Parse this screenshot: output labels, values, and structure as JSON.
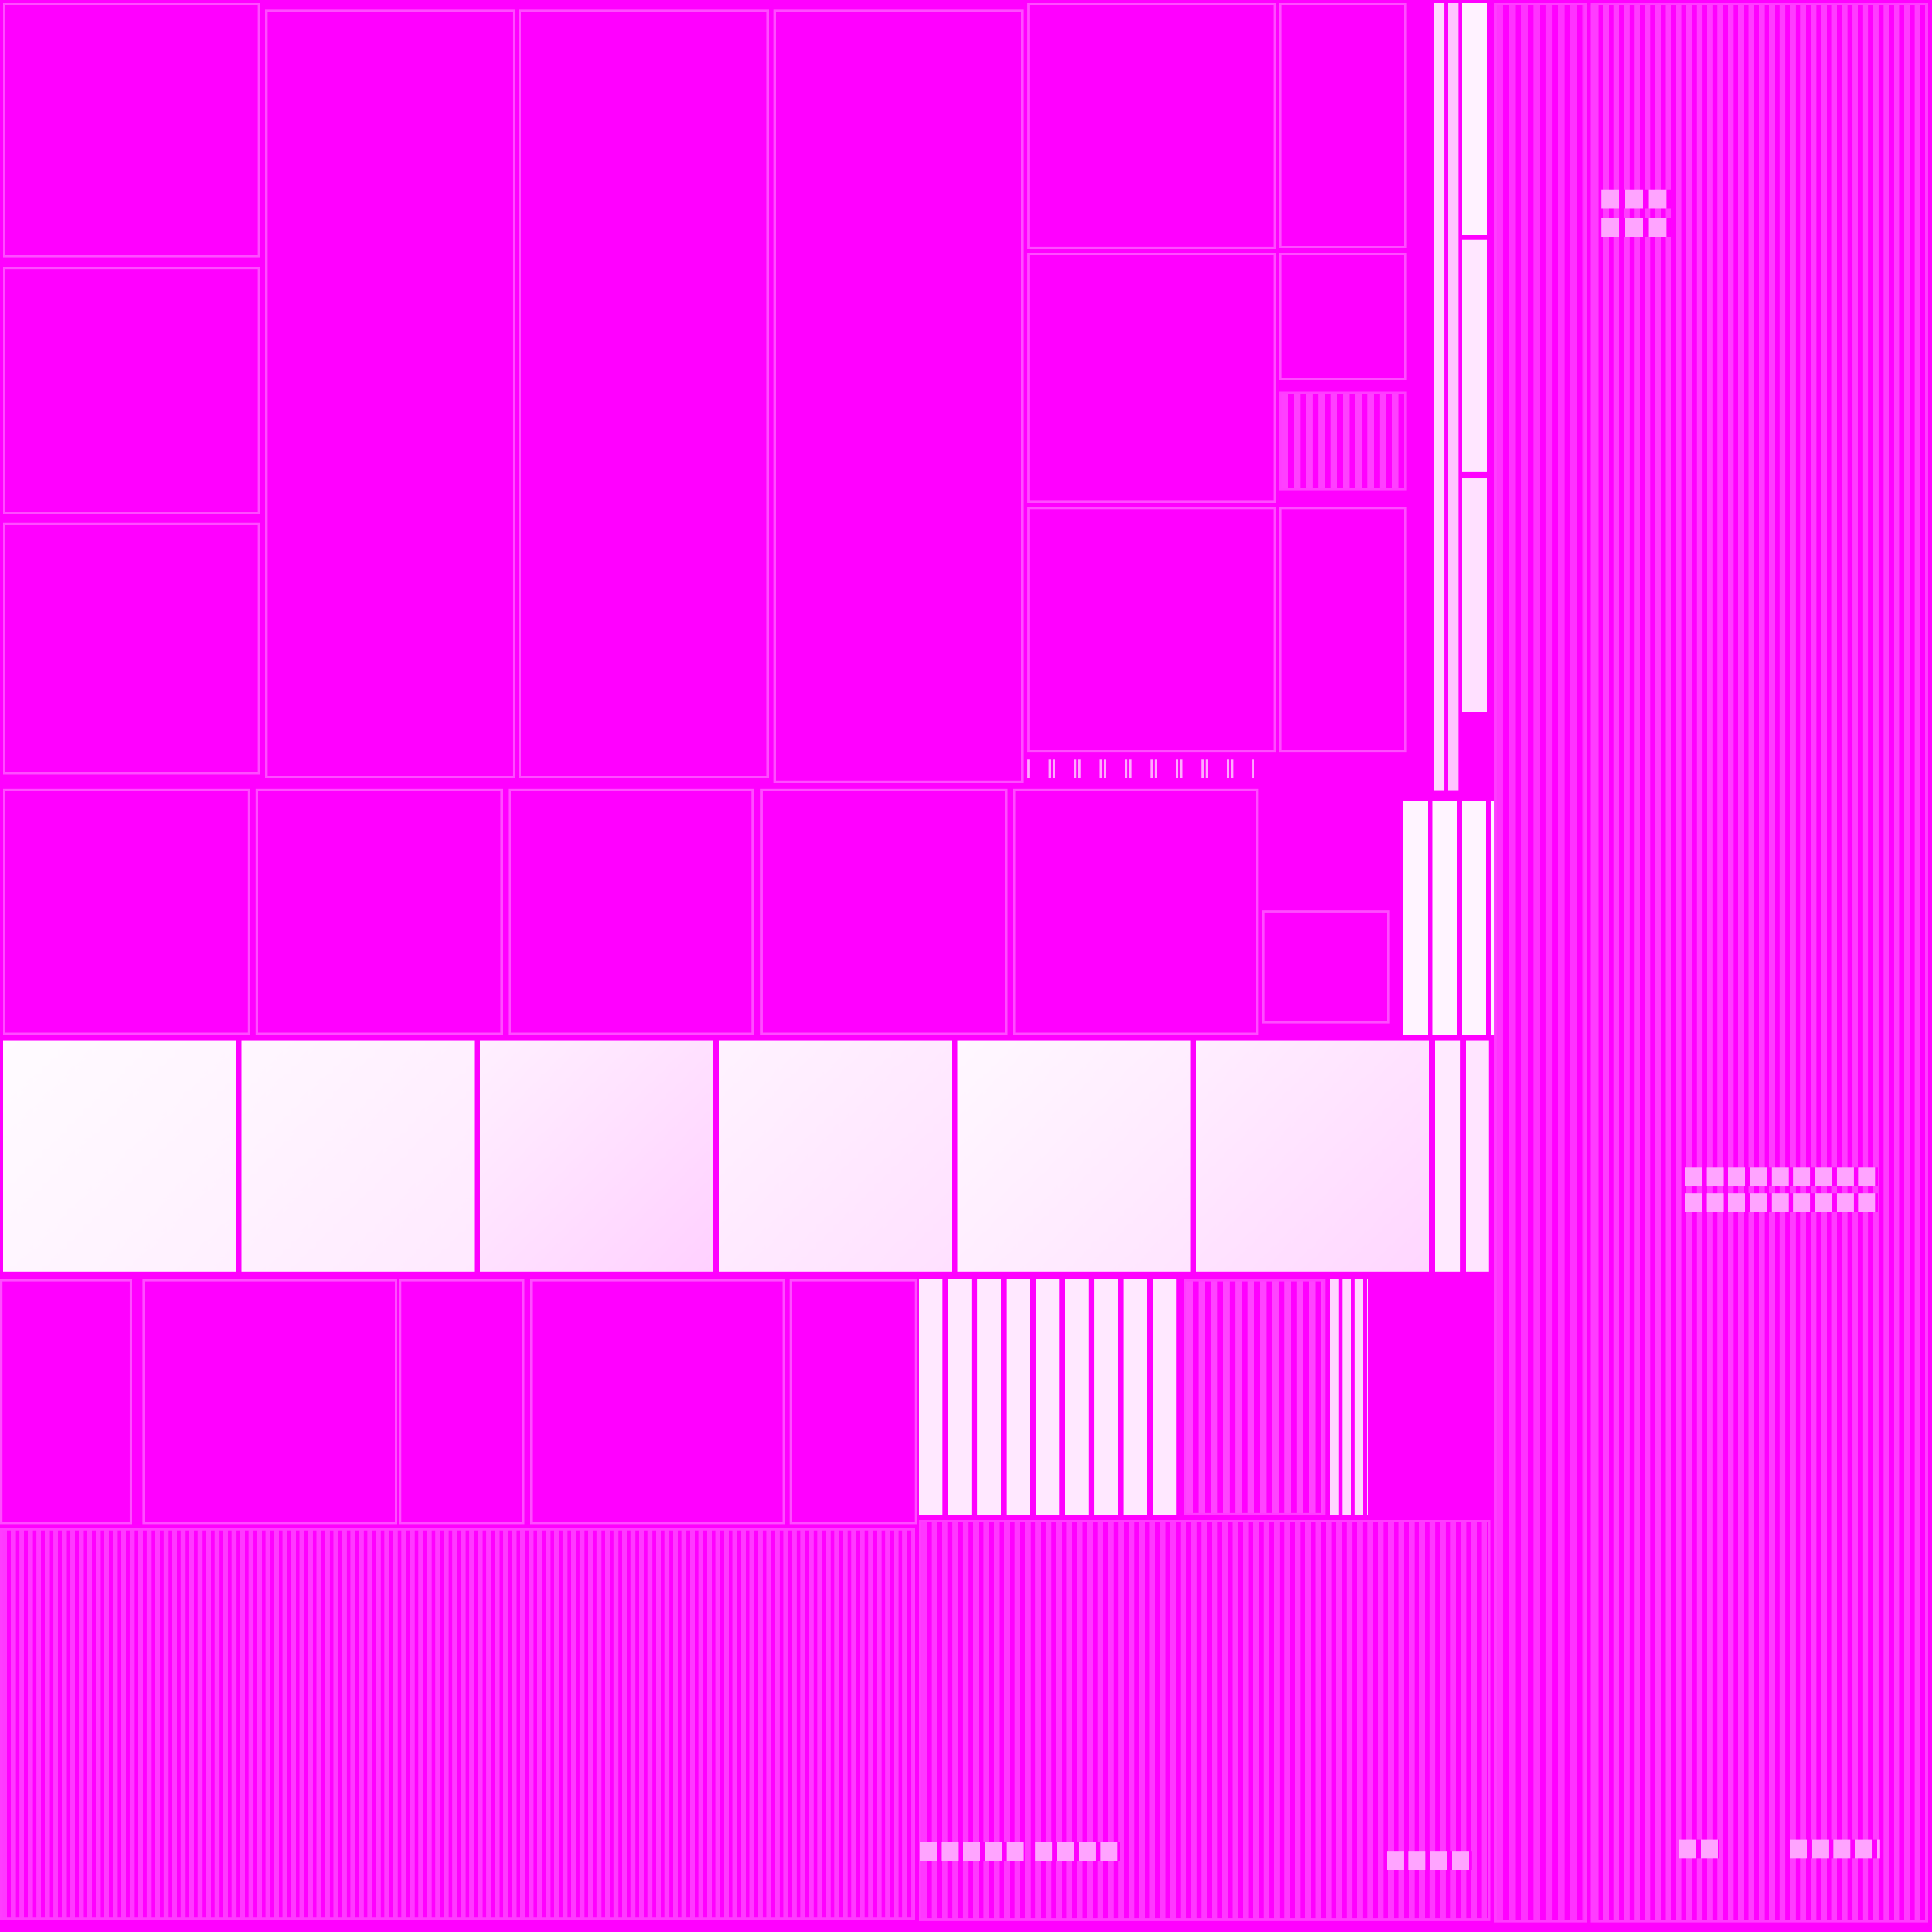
{
  "colors": {
    "background": "#ff00ff",
    "block_border": "#ff4dff",
    "pale_fill_light": "#fff5ff",
    "pale_fill_dark": "#ffd0ff",
    "stripe_light": "#ffb8ff",
    "stripe_dark": "#ff33ff"
  }
}
